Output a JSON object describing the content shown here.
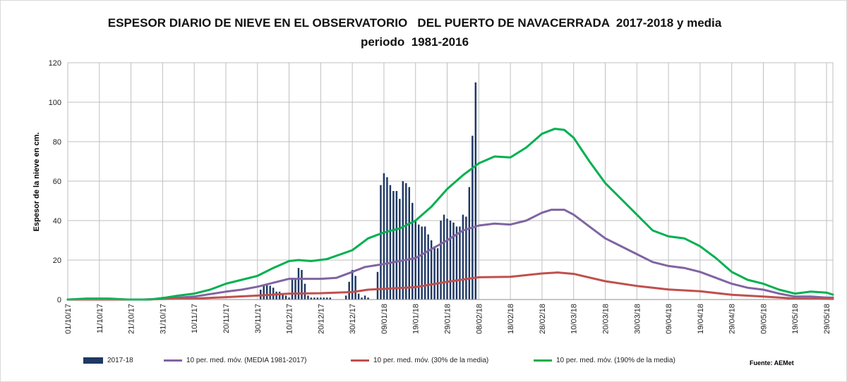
{
  "chart_data": {
    "type": "bar+line",
    "title_line1": "ESPESOR DIARIO DE NIEVE EN EL OBSERVATORIO   DEL PUERTO DE NAVACERRADA  2017-2018 y media",
    "title_line2": "periodo  1981-2016",
    "ylabel": "Espesor de la nieve en cm.",
    "xlabel": "",
    "ylim": [
      0,
      120
    ],
    "y_ticks": [
      0,
      20,
      40,
      60,
      80,
      100,
      120
    ],
    "x_range": [
      "2017-10-01",
      "2018-05-31"
    ],
    "x_tick_labels": [
      "01/10/17",
      "11/10/17",
      "21/10/17",
      "31/10/17",
      "10/11/17",
      "20/11/17",
      "30/11/17",
      "10/12/17",
      "20/12/17",
      "30/12/17",
      "09/01/18",
      "19/01/18",
      "29/01/18",
      "08/02/18",
      "18/02/18",
      "28/02/18",
      "10/03/18",
      "20/03/18",
      "30/03/18",
      "09/04/18",
      "19/04/18",
      "29/04/18",
      "09/05/18",
      "19/05/18",
      "29/05/18"
    ],
    "grid": true,
    "legend_position": "bottom",
    "source": "Fuente: AEMet",
    "bars": {
      "name": "2017-18",
      "color": "#1f3864",
      "points": [
        [
          "2017-12-01",
          5
        ],
        [
          "2017-12-02",
          7
        ],
        [
          "2017-12-03",
          8
        ],
        [
          "2017-12-04",
          7
        ],
        [
          "2017-12-05",
          6
        ],
        [
          "2017-12-06",
          4
        ],
        [
          "2017-12-07",
          4
        ],
        [
          "2017-12-08",
          3
        ],
        [
          "2017-12-09",
          2
        ],
        [
          "2017-12-10",
          1
        ],
        [
          "2017-12-11",
          11
        ],
        [
          "2017-12-12",
          10
        ],
        [
          "2017-12-13",
          16
        ],
        [
          "2017-12-14",
          15
        ],
        [
          "2017-12-15",
          8
        ],
        [
          "2017-12-16",
          2
        ],
        [
          "2017-12-17",
          1
        ],
        [
          "2017-12-18",
          1
        ],
        [
          "2017-12-19",
          1
        ],
        [
          "2017-12-20",
          1
        ],
        [
          "2017-12-21",
          1
        ],
        [
          "2017-12-22",
          1
        ],
        [
          "2017-12-23",
          1
        ],
        [
          "2017-12-28",
          2
        ],
        [
          "2017-12-29",
          9
        ],
        [
          "2017-12-30",
          15
        ],
        [
          "2017-12-31",
          12
        ],
        [
          "2018-01-01",
          3
        ],
        [
          "2018-01-02",
          1
        ],
        [
          "2018-01-03",
          2
        ],
        [
          "2018-01-04",
          1
        ],
        [
          "2018-01-07",
          14
        ],
        [
          "2018-01-08",
          58
        ],
        [
          "2018-01-09",
          64
        ],
        [
          "2018-01-10",
          62
        ],
        [
          "2018-01-11",
          58
        ],
        [
          "2018-01-12",
          55
        ],
        [
          "2018-01-13",
          55
        ],
        [
          "2018-01-14",
          51
        ],
        [
          "2018-01-15",
          60
        ],
        [
          "2018-01-16",
          59
        ],
        [
          "2018-01-17",
          57
        ],
        [
          "2018-01-18",
          49
        ],
        [
          "2018-01-19",
          40
        ],
        [
          "2018-01-20",
          38
        ],
        [
          "2018-01-21",
          37
        ],
        [
          "2018-01-22",
          37
        ],
        [
          "2018-01-23",
          33
        ],
        [
          "2018-01-24",
          30
        ],
        [
          "2018-01-25",
          27
        ],
        [
          "2018-01-26",
          26
        ],
        [
          "2018-01-27",
          40
        ],
        [
          "2018-01-28",
          43
        ],
        [
          "2018-01-29",
          41
        ],
        [
          "2018-01-30",
          40
        ],
        [
          "2018-01-31",
          39
        ],
        [
          "2018-02-01",
          37
        ],
        [
          "2018-02-02",
          37
        ],
        [
          "2018-02-03",
          43
        ],
        [
          "2018-02-04",
          42
        ],
        [
          "2018-02-05",
          57
        ],
        [
          "2018-02-06",
          83
        ],
        [
          "2018-02-07",
          110
        ]
      ]
    },
    "series": [
      {
        "name": "10 per. med. móv. (MEDIA 1981-2017)",
        "color": "#8064a2",
        "points": [
          [
            "2017-10-01",
            0
          ],
          [
            "2017-10-25",
            0
          ],
          [
            "2017-11-01",
            0.5
          ],
          [
            "2017-11-10",
            1.5
          ],
          [
            "2017-11-20",
            4
          ],
          [
            "2017-11-25",
            5
          ],
          [
            "2017-11-30",
            6.5
          ],
          [
            "2017-12-05",
            8.5
          ],
          [
            "2017-12-10",
            10.5
          ],
          [
            "2017-12-15",
            10.5
          ],
          [
            "2017-12-20",
            10.5
          ],
          [
            "2017-12-25",
            11
          ],
          [
            "2017-12-30",
            14
          ],
          [
            "2018-01-03",
            16.5
          ],
          [
            "2018-01-09",
            18
          ],
          [
            "2018-01-19",
            21
          ],
          [
            "2018-01-29",
            30
          ],
          [
            "2018-02-03",
            35
          ],
          [
            "2018-02-08",
            37.5
          ],
          [
            "2018-02-13",
            38.5
          ],
          [
            "2018-02-18",
            38
          ],
          [
            "2018-02-23",
            40
          ],
          [
            "2018-02-28",
            44
          ],
          [
            "2018-03-03",
            45.5
          ],
          [
            "2018-03-07",
            45.5
          ],
          [
            "2018-03-10",
            43
          ],
          [
            "2018-03-15",
            37
          ],
          [
            "2018-03-20",
            31
          ],
          [
            "2018-03-25",
            27
          ],
          [
            "2018-03-30",
            23
          ],
          [
            "2018-04-04",
            19
          ],
          [
            "2018-04-09",
            17
          ],
          [
            "2018-04-14",
            16
          ],
          [
            "2018-04-19",
            14
          ],
          [
            "2018-04-24",
            11
          ],
          [
            "2018-04-29",
            8
          ],
          [
            "2018-05-04",
            6
          ],
          [
            "2018-05-09",
            5
          ],
          [
            "2018-05-14",
            3
          ],
          [
            "2018-05-19",
            1.5
          ],
          [
            "2018-05-24",
            1.5
          ],
          [
            "2018-05-29",
            1
          ],
          [
            "2018-05-31",
            1
          ]
        ]
      },
      {
        "name": "10 per. med. móv. (30% de la media)",
        "color": "#c0504d",
        "points": [
          [
            "2017-10-01",
            0
          ],
          [
            "2017-10-25",
            0
          ],
          [
            "2017-11-01",
            0.3
          ],
          [
            "2017-11-10",
            0.5
          ],
          [
            "2017-11-20",
            1.2
          ],
          [
            "2017-11-30",
            2
          ],
          [
            "2017-12-10",
            3
          ],
          [
            "2017-12-20",
            3.2
          ],
          [
            "2017-12-30",
            3.8
          ],
          [
            "2018-01-04",
            5
          ],
          [
            "2018-01-09",
            5.4
          ],
          [
            "2018-01-19",
            6.3
          ],
          [
            "2018-01-29",
            9
          ],
          [
            "2018-02-08",
            11.3
          ],
          [
            "2018-02-18",
            11.5
          ],
          [
            "2018-02-28",
            13.2
          ],
          [
            "2018-03-05",
            13.7
          ],
          [
            "2018-03-10",
            13
          ],
          [
            "2018-03-20",
            9.3
          ],
          [
            "2018-03-30",
            6.9
          ],
          [
            "2018-04-09",
            5.1
          ],
          [
            "2018-04-19",
            4.2
          ],
          [
            "2018-04-29",
            2.4
          ],
          [
            "2018-05-09",
            1.5
          ],
          [
            "2018-05-19",
            0.5
          ],
          [
            "2018-05-31",
            0.3
          ]
        ]
      },
      {
        "name": "10 per. med. móv. (190% de la media)",
        "color": "#00b050",
        "points": [
          [
            "2017-10-01",
            0
          ],
          [
            "2017-10-07",
            0.5
          ],
          [
            "2017-10-14",
            0.5
          ],
          [
            "2017-10-20",
            0
          ],
          [
            "2017-10-27",
            0
          ],
          [
            "2017-11-01",
            1
          ],
          [
            "2017-11-05",
            2
          ],
          [
            "2017-11-10",
            3
          ],
          [
            "2017-11-15",
            5
          ],
          [
            "2017-11-20",
            8
          ],
          [
            "2017-11-25",
            10
          ],
          [
            "2017-11-30",
            12
          ],
          [
            "2017-12-05",
            16
          ],
          [
            "2017-12-10",
            19.5
          ],
          [
            "2017-12-13",
            20
          ],
          [
            "2017-12-17",
            19.5
          ],
          [
            "2017-12-22",
            20.5
          ],
          [
            "2017-12-30",
            25
          ],
          [
            "2018-01-04",
            31
          ],
          [
            "2018-01-09",
            34
          ],
          [
            "2018-01-14",
            36
          ],
          [
            "2018-01-19",
            40
          ],
          [
            "2018-01-24",
            47
          ],
          [
            "2018-01-29",
            56
          ],
          [
            "2018-02-03",
            63
          ],
          [
            "2018-02-08",
            69
          ],
          [
            "2018-02-13",
            72.5
          ],
          [
            "2018-02-18",
            72
          ],
          [
            "2018-02-23",
            77
          ],
          [
            "2018-02-28",
            84
          ],
          [
            "2018-03-04",
            86.5
          ],
          [
            "2018-03-07",
            86
          ],
          [
            "2018-03-10",
            82
          ],
          [
            "2018-03-15",
            70
          ],
          [
            "2018-03-20",
            59
          ],
          [
            "2018-03-25",
            51
          ],
          [
            "2018-03-30",
            43
          ],
          [
            "2018-04-04",
            35
          ],
          [
            "2018-04-09",
            32
          ],
          [
            "2018-04-14",
            31
          ],
          [
            "2018-04-19",
            27
          ],
          [
            "2018-04-24",
            21
          ],
          [
            "2018-04-29",
            14
          ],
          [
            "2018-05-04",
            10
          ],
          [
            "2018-05-09",
            8
          ],
          [
            "2018-05-14",
            5
          ],
          [
            "2018-05-19",
            3
          ],
          [
            "2018-05-24",
            4
          ],
          [
            "2018-05-29",
            3.5
          ],
          [
            "2018-05-31",
            2.5
          ]
        ]
      }
    ]
  }
}
